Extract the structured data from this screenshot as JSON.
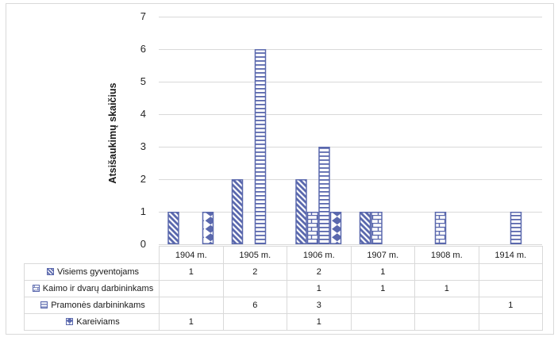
{
  "chart_data": {
    "type": "bar",
    "title": "",
    "ylabel": "Atsišaukimų skaičius",
    "xlabel": "",
    "ylim": [
      0,
      7
    ],
    "yticks": [
      "0",
      "1",
      "2",
      "3",
      "4",
      "5",
      "6",
      "7"
    ],
    "grid": true,
    "legend_position": "bottom-table",
    "categories": [
      "1904 m.",
      "1905 m.",
      "1906 m.",
      "1907 m.",
      "1908 m.",
      "1914 m."
    ],
    "series": [
      {
        "name": "Visiems gyventojams",
        "pattern": "diagonal-hatch",
        "values": [
          1,
          2,
          2,
          1,
          null,
          null
        ]
      },
      {
        "name": "Kaimo ir dvarų darbininkams",
        "pattern": "brick",
        "values": [
          null,
          null,
          1,
          1,
          1,
          null
        ]
      },
      {
        "name": "Pramonės darbininkams",
        "pattern": "horizontal-lines",
        "values": [
          null,
          6,
          3,
          null,
          null,
          1
        ]
      },
      {
        "name": "Kareiviams",
        "pattern": "diamond",
        "values": [
          1,
          null,
          1,
          null,
          null,
          null
        ]
      }
    ],
    "colors": {
      "series_fg": "#5a68ad",
      "gridline": "#d9d9d9",
      "table_border": "#d9d9d9",
      "frame_border": "#d9d9d9",
      "text": "#262626"
    }
  }
}
